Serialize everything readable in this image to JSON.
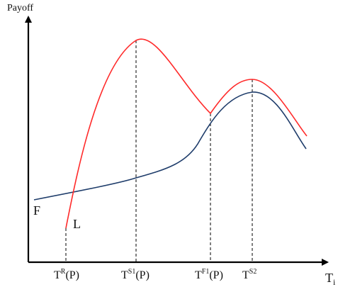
{
  "axes": {
    "y_label": "Payoff",
    "x_label": {
      "base": "T",
      "sub": "i"
    }
  },
  "curves": {
    "follower": {
      "label": "F",
      "color": "#1f3d6b"
    },
    "leader": {
      "label": "L",
      "color": "#ff2a2a"
    }
  },
  "ticks": [
    {
      "id": "tr",
      "base": "T",
      "sup": "R",
      "suffix": "(P)"
    },
    {
      "id": "ts1",
      "base": "T",
      "sup": "S1",
      "suffix": "(P)"
    },
    {
      "id": "tf1",
      "base": "T",
      "sup": "F1",
      "suffix": "(P)"
    },
    {
      "id": "ts2",
      "base": "T",
      "sup": "S2",
      "suffix": ""
    }
  ],
  "colors": {
    "axis": "#000000",
    "guide": "#000000"
  }
}
